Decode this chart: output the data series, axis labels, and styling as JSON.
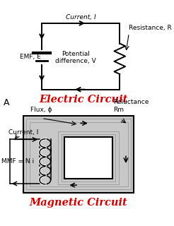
{
  "bg_color": "#ffffff",
  "title_electric": "Electric Circuit",
  "title_magnetic": "Magnetic Circuit",
  "title_color": "#cc0000",
  "label_color": "#000000",
  "line_color": "#000000",
  "label_A": "A",
  "label_emf": "EMF, E",
  "label_current_top": "Current, I",
  "label_resistance": "Resistance, R",
  "label_potential": "Potential\ndifference, V",
  "label_flux": "Flux, ϕ",
  "label_reluctance": "Reluctance\nRm",
  "label_current_mag": "Current, I",
  "label_mmf": "MMF = N i",
  "core_fill": "#c8c8c8",
  "core_inner_fill": "#ffffff"
}
